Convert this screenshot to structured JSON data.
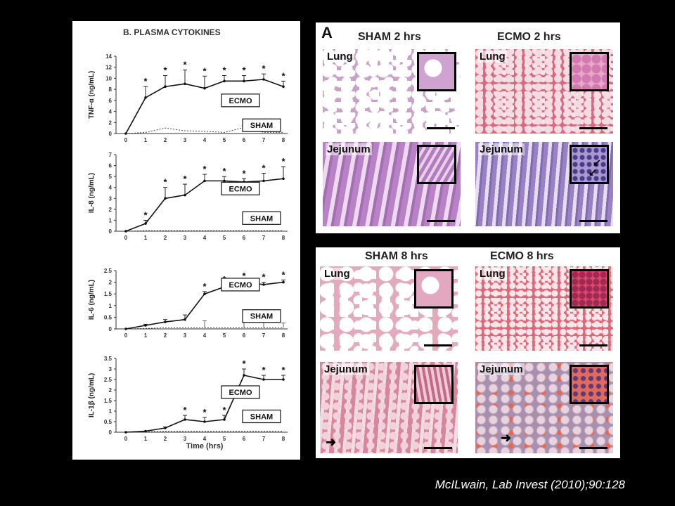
{
  "charts_title": "B. PLASMA CYTOKINES",
  "x_axis_label": "Time (hrs)",
  "chart_data": [
    {
      "type": "line",
      "ylabel": "TNF-α (ng/mL)",
      "x": [
        0,
        1,
        2,
        3,
        4,
        5,
        6,
        7,
        8
      ],
      "ylim": [
        0,
        14
      ],
      "yticks": [
        "0",
        "2",
        "4",
        "6",
        "8",
        "10",
        "12",
        "14"
      ],
      "series": [
        {
          "name": "ECMO",
          "values": [
            0,
            6.5,
            8.5,
            9,
            8.2,
            9.5,
            9.5,
            9.8,
            8.5
          ],
          "err": [
            0,
            2,
            2,
            2.5,
            2.2,
            1,
            1,
            1,
            1
          ]
        },
        {
          "name": "SHAM",
          "values": [
            0,
            0.2,
            1,
            0.5,
            0.4,
            0.2,
            1.1,
            0.2,
            0.2
          ],
          "err": [
            0,
            0,
            0,
            0,
            0,
            0,
            0.3,
            0,
            0
          ]
        }
      ],
      "sig": [
        false,
        true,
        true,
        true,
        true,
        true,
        true,
        true,
        true
      ],
      "legend_ecmo_at": 6,
      "legend_sham_at": 1.5
    },
    {
      "type": "line",
      "ylabel": "IL-8 (ng/mL)",
      "x": [
        0,
        1,
        2,
        3,
        4,
        5,
        6,
        7,
        8
      ],
      "ylim": [
        0,
        7
      ],
      "yticks": [
        "0",
        "1",
        "2",
        "3",
        "4",
        "5",
        "6",
        "7"
      ],
      "series": [
        {
          "name": "ECMO",
          "values": [
            0,
            0.7,
            3,
            3.3,
            4.6,
            4.6,
            4.5,
            4.6,
            4.8
          ],
          "err": [
            0,
            0.3,
            1,
            1,
            0.6,
            0.4,
            0.3,
            0.7,
            1.1
          ]
        },
        {
          "name": "SHAM",
          "values": [
            0,
            0.05,
            0.05,
            0.05,
            0.05,
            0.05,
            0.05,
            0.05,
            0.05
          ],
          "err": [
            0,
            0,
            0,
            0,
            0,
            0,
            0,
            0,
            0
          ]
        }
      ],
      "sig": [
        false,
        true,
        true,
        true,
        true,
        true,
        true,
        true,
        true
      ],
      "legend_ecmo_at": 3.9,
      "legend_sham_at": 1.2
    },
    {
      "type": "line",
      "ylabel": "IL-6 (ng/mL)",
      "x": [
        0,
        1,
        2,
        3,
        4,
        5,
        6,
        7,
        8
      ],
      "ylim": [
        0,
        2.5
      ],
      "yticks": [
        "0",
        "0.5",
        "1",
        "1.5",
        "2",
        "2.5"
      ],
      "series": [
        {
          "name": "ECMO",
          "values": [
            0,
            0.15,
            0.3,
            0.4,
            1.5,
            1.8,
            2,
            1.9,
            2
          ],
          "err": [
            0,
            0.05,
            0.1,
            0.2,
            0.1,
            0.1,
            0.05,
            0.1,
            0.1
          ]
        },
        {
          "name": "SHAM",
          "values": [
            0,
            0.02,
            0.05,
            0.05,
            0.05,
            0.05,
            0.05,
            0.05,
            0.05
          ],
          "err": [
            0,
            0,
            0,
            0,
            0.3,
            0,
            0.25,
            0.25,
            0.2
          ]
        }
      ],
      "sig": [
        false,
        false,
        false,
        false,
        true,
        true,
        true,
        true,
        true
      ],
      "legend_ecmo_at": 1.9,
      "legend_sham_at": 0.55
    },
    {
      "type": "line",
      "ylabel": "IL-1β (ng/mL)",
      "x": [
        0,
        1,
        2,
        3,
        4,
        5,
        6,
        7,
        8
      ],
      "ylim": [
        0,
        3.5
      ],
      "yticks": [
        "0",
        "0.5",
        "1",
        "1.5",
        "2",
        "2.5",
        "3",
        "3.5"
      ],
      "series": [
        {
          "name": "ECMO",
          "values": [
            0,
            0.05,
            0.2,
            0.6,
            0.5,
            0.6,
            2.7,
            2.5,
            2.5
          ],
          "err": [
            0,
            0,
            0.05,
            0.2,
            0.2,
            0.2,
            0.3,
            0.2,
            0.2
          ]
        },
        {
          "name": "SHAM",
          "values": [
            0,
            0.02,
            0.05,
            0.05,
            0.05,
            0.05,
            0.05,
            0.05,
            0.05
          ],
          "err": [
            0,
            0,
            0,
            0,
            0,
            0,
            0,
            0,
            0
          ]
        }
      ],
      "sig": [
        false,
        false,
        false,
        true,
        true,
        true,
        true,
        true,
        true
      ],
      "legend_ecmo_at": 1.9,
      "legend_sham_at": 0.75
    }
  ],
  "histology": {
    "panel_letter": "A",
    "top": {
      "left_title": "SHAM 2 hrs",
      "right_title": "ECMO 2 hrs"
    },
    "bottom": {
      "left_title": "SHAM 8 hrs",
      "right_title": "ECMO 8 hrs"
    },
    "tissue_lung": "Lung",
    "tissue_jejunum": "Jejunum"
  },
  "citation": "McILwain, Lab Invest (2010);90:128"
}
